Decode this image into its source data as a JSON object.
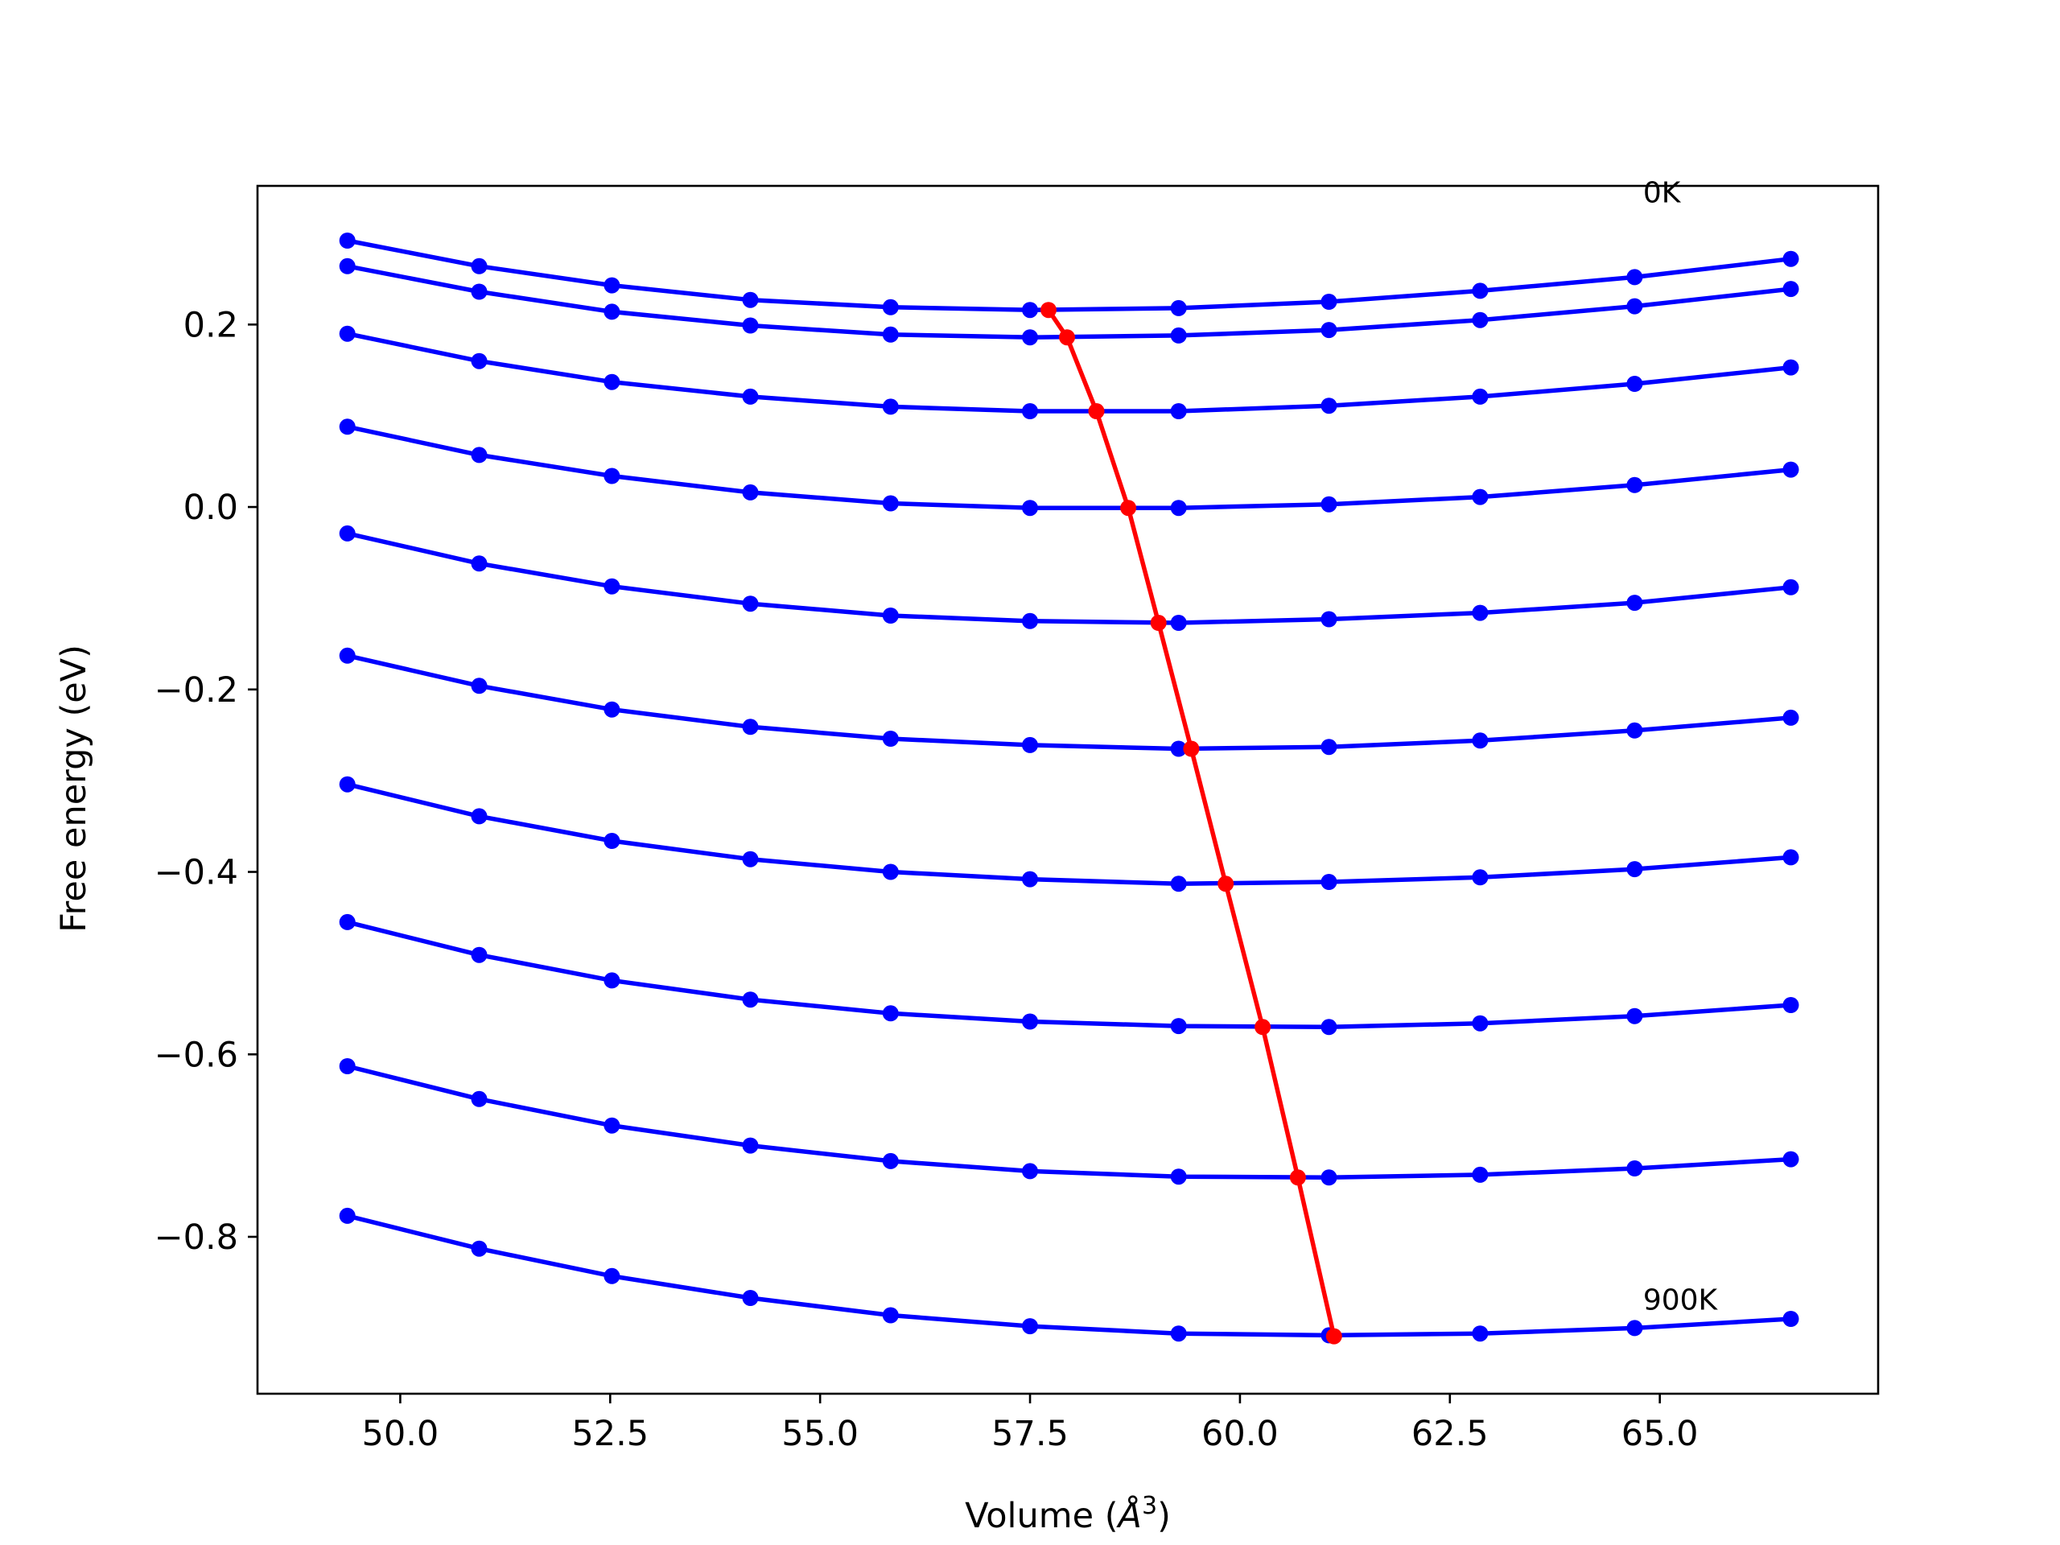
{
  "chart_data": {
    "type": "line",
    "title": "",
    "xlabel": "Volume",
    "xlabel_unit_base": "Å",
    "xlabel_unit_exp": "3",
    "ylabel": "Free energy (eV)",
    "xlim": [
      48.3,
      67.6
    ],
    "ylim": [
      -0.972,
      0.352
    ],
    "xticks": [
      50.0,
      52.5,
      55.0,
      57.5,
      60.0,
      62.5,
      65.0
    ],
    "xtick_labels": [
      "50.0",
      "52.5",
      "55.0",
      "57.5",
      "60.0",
      "62.5",
      "65.0"
    ],
    "yticks": [
      0.2,
      0.0,
      -0.2,
      -0.4,
      -0.6,
      -0.8
    ],
    "ytick_labels": [
      "0.2",
      "0.0",
      "−0.2",
      "−0.4",
      "−0.6",
      "−0.8"
    ],
    "grid": false,
    "x": [
      49.37,
      50.94,
      52.52,
      54.17,
      55.84,
      57.5,
      59.27,
      61.06,
      62.86,
      64.7,
      66.56
    ],
    "series": [
      {
        "values": [
          0.292,
          0.264,
          0.243,
          0.227,
          0.219,
          0.216,
          0.218,
          0.225,
          0.237,
          0.252,
          0.272
        ]
      },
      {
        "values": [
          0.264,
          0.236,
          0.214,
          0.199,
          0.189,
          0.186,
          0.188,
          0.194,
          0.205,
          0.22,
          0.239
        ]
      },
      {
        "values": [
          0.19,
          0.16,
          0.137,
          0.121,
          0.11,
          0.105,
          0.105,
          0.111,
          0.121,
          0.135,
          0.153
        ]
      },
      {
        "values": [
          0.088,
          0.057,
          0.034,
          0.016,
          0.004,
          -0.001,
          -0.001,
          0.003,
          0.011,
          0.024,
          0.041
        ]
      },
      {
        "values": [
          -0.029,
          -0.062,
          -0.087,
          -0.106,
          -0.119,
          -0.125,
          -0.127,
          -0.123,
          -0.116,
          -0.105,
          -0.088
        ]
      },
      {
        "values": [
          -0.163,
          -0.196,
          -0.222,
          -0.241,
          -0.254,
          -0.261,
          -0.265,
          -0.263,
          -0.256,
          -0.245,
          -0.231
        ]
      },
      {
        "values": [
          -0.304,
          -0.339,
          -0.366,
          -0.386,
          -0.4,
          -0.408,
          -0.413,
          -0.411,
          -0.406,
          -0.397,
          -0.384
        ]
      },
      {
        "values": [
          -0.455,
          -0.491,
          -0.519,
          -0.54,
          -0.555,
          -0.564,
          -0.569,
          -0.57,
          -0.566,
          -0.558,
          -0.546
        ]
      },
      {
        "values": [
          -0.613,
          -0.649,
          -0.678,
          -0.7,
          -0.717,
          -0.728,
          -0.734,
          -0.735,
          -0.732,
          -0.725,
          -0.715
        ]
      },
      {
        "values": [
          -0.777,
          -0.813,
          -0.843,
          -0.867,
          -0.886,
          -0.898,
          -0.906,
          -0.908,
          -0.906,
          -0.9,
          -0.89
        ]
      }
    ],
    "min_curve": {
      "x": [
        57.72,
        57.94,
        58.29,
        58.67,
        59.03,
        59.42,
        59.83,
        60.27,
        60.69,
        61.12
      ],
      "y": [
        0.216,
        0.186,
        0.105,
        -0.001,
        -0.127,
        -0.265,
        -0.413,
        -0.57,
        -0.735,
        -0.909
      ]
    },
    "annotations": [
      {
        "text": "0K",
        "x": 64.8,
        "y": 0.334
      },
      {
        "text": "900K",
        "x": 64.8,
        "y": -0.88
      }
    ],
    "colors": {
      "curves": "#0000ff",
      "minimum_line": "#ff0000"
    }
  }
}
